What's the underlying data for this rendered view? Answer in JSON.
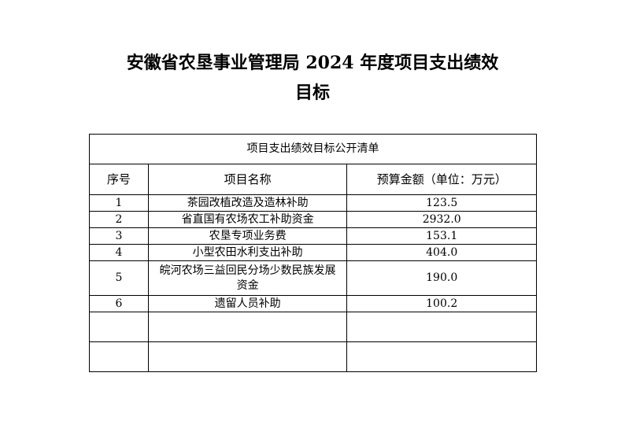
{
  "title": {
    "line1": "安徽省农垦事业管理局 2024 年度项目支出绩效",
    "line2": "目标"
  },
  "table": {
    "caption": "项目支出绩效目标公开清单",
    "headers": [
      "序号",
      "项目名称",
      "预算金额（单位：万元）"
    ],
    "rows": [
      {
        "no": "1",
        "name": "茶园改植改造及造林补助",
        "amount": "123.5"
      },
      {
        "no": "2",
        "name": "省直国有农场农工补助资金",
        "amount": "2932.0"
      },
      {
        "no": "3",
        "name": "农垦专项业务费",
        "amount": "153.1"
      },
      {
        "no": "4",
        "name": "小型农田水利支出补助",
        "amount": "404.0"
      },
      {
        "no": "5",
        "name": "皖河农场三益回民分场少数民族发展资金",
        "amount": "190.0"
      },
      {
        "no": "6",
        "name": "遗留人员补助",
        "amount": "100.2"
      }
    ]
  }
}
